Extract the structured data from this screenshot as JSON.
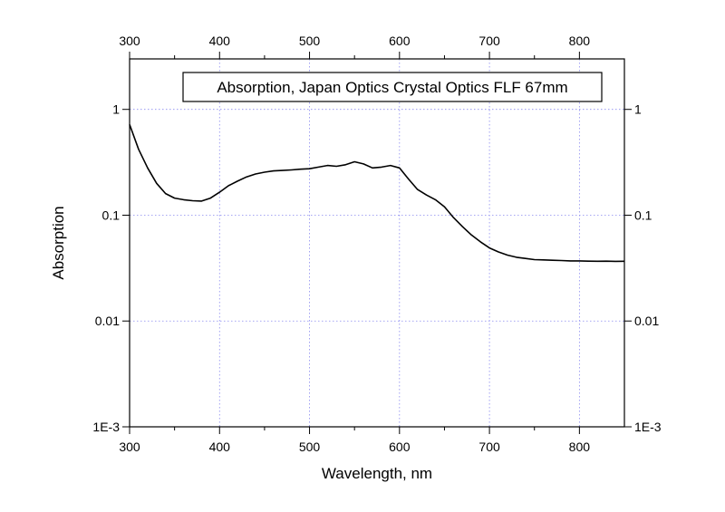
{
  "chart_data": {
    "type": "line",
    "title": "",
    "xlabel": "Wavelength, nm",
    "ylabel": "Absorption",
    "xlim": [
      300,
      850
    ],
    "ylim": [
      0.001,
      3
    ],
    "y_scale": "log",
    "x_ticks": [
      300,
      400,
      500,
      600,
      700,
      800
    ],
    "x_tick_labels": [
      "300",
      "400",
      "500",
      "600",
      "700",
      "800"
    ],
    "y_ticks": [
      0.001,
      0.01,
      0.1,
      1
    ],
    "y_tick_labels": [
      "1E-3",
      "0.01",
      "0.1",
      "1"
    ],
    "grid": true,
    "grid_color": "#8a8af0",
    "line_color": "#000000",
    "legend_placement": "top-right",
    "series": [
      {
        "name": "Absorption, Japan Optics Crystal Optics FLF 67mm",
        "x": [
          300,
          310,
          320,
          330,
          340,
          350,
          360,
          370,
          380,
          390,
          400,
          410,
          420,
          430,
          440,
          450,
          460,
          470,
          480,
          490,
          500,
          510,
          520,
          530,
          540,
          550,
          560,
          570,
          580,
          590,
          600,
          610,
          620,
          630,
          640,
          650,
          660,
          670,
          680,
          690,
          700,
          710,
          720,
          730,
          740,
          750,
          760,
          770,
          780,
          790,
          800,
          810,
          820,
          830,
          840,
          850
        ],
        "values": [
          0.72,
          0.42,
          0.28,
          0.2,
          0.16,
          0.145,
          0.14,
          0.137,
          0.136,
          0.145,
          0.165,
          0.19,
          0.21,
          0.23,
          0.245,
          0.255,
          0.262,
          0.265,
          0.268,
          0.272,
          0.275,
          0.285,
          0.295,
          0.29,
          0.3,
          0.32,
          0.305,
          0.28,
          0.285,
          0.295,
          0.28,
          0.22,
          0.175,
          0.155,
          0.14,
          0.12,
          0.095,
          0.078,
          0.065,
          0.056,
          0.049,
          0.045,
          0.042,
          0.04,
          0.039,
          0.038,
          0.0378,
          0.0375,
          0.0373,
          0.037,
          0.037,
          0.0368,
          0.0367,
          0.0368,
          0.0366,
          0.0367
        ]
      }
    ]
  }
}
